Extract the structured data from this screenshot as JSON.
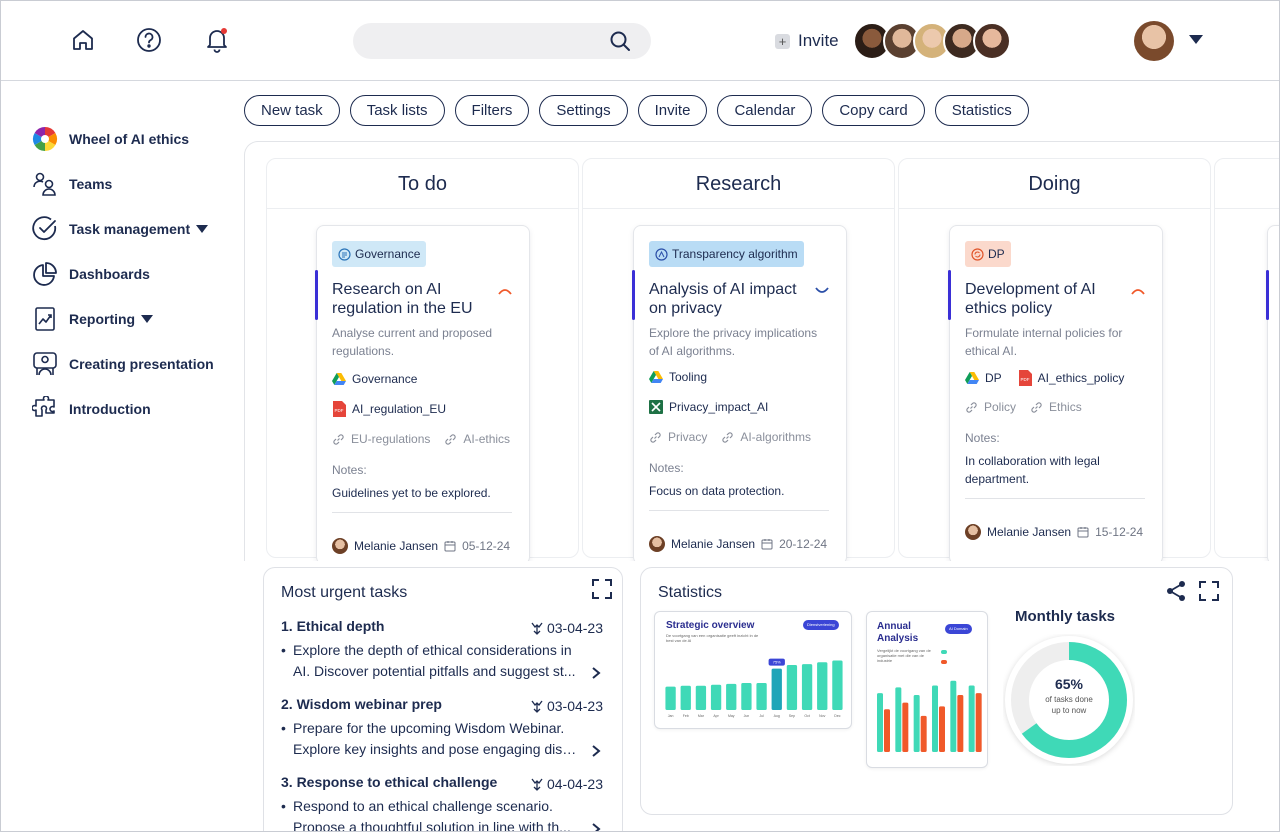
{
  "topbar": {
    "search_placeholder": "",
    "invite_label": "Invite",
    "invite_plus": "+"
  },
  "sidebar": {
    "items": [
      {
        "label": "Wheel of AI ethics"
      },
      {
        "label": "Teams"
      },
      {
        "label": "Task management"
      },
      {
        "label": "Dashboards"
      },
      {
        "label": "Reporting"
      },
      {
        "label": "Creating presentation"
      },
      {
        "label": "Introduction"
      }
    ]
  },
  "toolbar": {
    "buttons": [
      "New task",
      "Task lists",
      "Filters",
      "Settings",
      "Invite",
      "Calendar",
      "Copy card",
      "Statistics"
    ]
  },
  "board": {
    "columns": [
      {
        "title": "To do",
        "card": {
          "tag": "Governance",
          "title": "Research on AI regulation in the EU",
          "desc": "Analyse current and proposed regulations.",
          "drive": "Governance",
          "file": "AI_regulation_EU",
          "link1": "EU-regulations",
          "link2": "AI-ethics",
          "notes_label": "Notes:",
          "notes": "Guidelines yet to be explored.",
          "owner": "Melanie Jansen",
          "date": "05-12-24"
        }
      },
      {
        "title": "Research",
        "card": {
          "tag": "Transparency algorithm",
          "title": "Analysis of AI impact on privacy",
          "desc": "Explore the privacy implications of AI algorithms.",
          "drive": "Tooling",
          "file": "Privacy_impact_AI",
          "link1": "Privacy",
          "link2": "AI-algorithms",
          "notes_label": "Notes:",
          "notes": "Focus on data protection.",
          "owner": "Melanie Jansen",
          "date": "20-12-24"
        }
      },
      {
        "title": "Doing",
        "card": {
          "tag": "DP",
          "title": "Development of AI ethics policy",
          "desc": "Formulate internal policies for ethical AI.",
          "drive": "DP",
          "file": "AI_ethics_policy",
          "link1": "Policy",
          "link2": "Ethics",
          "notes_label": "Notes:",
          "notes": "In collaboration with legal department.",
          "owner": "Melanie Jansen",
          "date": "15-12-24"
        }
      }
    ]
  },
  "urgent": {
    "title": "Most urgent tasks",
    "items": [
      {
        "title": "1. Ethical depth",
        "date": "03-04-23",
        "line1": "Explore the depth of ethical considerations in",
        "line2": "AI. Discover potential pitfalls and suggest st..."
      },
      {
        "title": "2. Wisdom webinar prep",
        "date": "03-04-23",
        "line1": "Prepare for the upcoming Wisdom Webinar.",
        "line2": "Explore key insights and pose engaging disc..."
      },
      {
        "title": "3. Response to ethical challenge",
        "date": "04-04-23",
        "line1": "Respond to an ethical challenge scenario.",
        "line2": "Propose a thoughtful solution in line with th..."
      }
    ]
  },
  "statistics": {
    "title": "Statistics",
    "strategic": {
      "title": "Strategic overview",
      "subtitle": "De voortgang van een organisatie geeft inzicht in de best van de AI",
      "pill": "Dienstverlening",
      "highlight": "75%",
      "values": [
        26,
        27,
        27,
        28,
        29,
        30,
        30,
        46,
        50,
        51,
        53,
        55
      ],
      "highlight_index": 7,
      "months": [
        "Jan",
        "Feb",
        "Mar",
        "Apr",
        "May",
        "Jun",
        "Jul",
        "Aug",
        "Sep",
        "Oct",
        "Nov",
        "Dec"
      ]
    },
    "annual": {
      "title": "Annual Analysis",
      "subtitle": "Vergelijkt de voortgang van de organisatie met die van de industrie",
      "pill": "AI Domain",
      "series_a": [
        62,
        68,
        60,
        70,
        75,
        70
      ],
      "series_b": [
        45,
        52,
        38,
        48,
        60,
        62
      ],
      "color_a": "#3fd9b7",
      "color_b": "#f0592a"
    },
    "monthly": {
      "title": "Monthly tasks",
      "percent": "65%",
      "percent_value": 65,
      "caption1": "of tasks done",
      "caption2": "up to now",
      "color": "#3fd9b7"
    }
  },
  "colors": {
    "navy": "#1d2b4f",
    "accent_bar": "#3a2fd6",
    "teal": "#3fd9b7",
    "orange": "#f0592a"
  }
}
